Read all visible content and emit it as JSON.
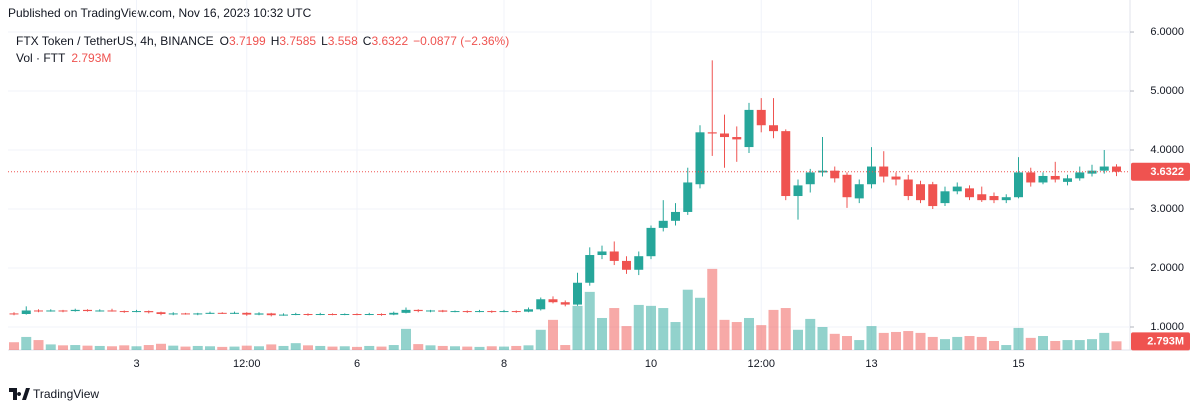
{
  "header": "Published on TradingView.com, Nov 16, 2023 10:32 UTC",
  "footer": "TradingView",
  "chart_data": {
    "type": "candlestick",
    "legend": {
      "symbol": "FTX Token / TetherUS, 4h, BINANCE",
      "open_prefix": "O",
      "high_prefix": "H",
      "low_prefix": "L",
      "close_prefix": "C",
      "change": "−0.0877 (−2.36%)"
    },
    "x": [
      null,
      null,
      null,
      null,
      null,
      null,
      null,
      null,
      null,
      null,
      "3",
      null,
      null,
      null,
      null,
      null,
      null,
      null,
      null,
      "12:00",
      null,
      null,
      null,
      null,
      null,
      null,
      null,
      null,
      "6",
      null,
      null,
      null,
      null,
      null,
      null,
      null,
      null,
      null,
      null,
      null,
      "8",
      null,
      null,
      null,
      null,
      null,
      null,
      null,
      null,
      null,
      null,
      null,
      "10",
      null,
      null,
      null,
      null,
      null,
      null,
      null,
      null,
      "12:00",
      null,
      null,
      null,
      null,
      null,
      null,
      null,
      null,
      "13",
      null,
      null,
      null,
      null,
      null,
      null,
      null,
      null,
      null,
      null,
      null,
      "15",
      null,
      null,
      null,
      null,
      null,
      null,
      null,
      null
    ],
    "open": [
      1.23,
      1.22,
      1.28,
      1.27,
      1.28,
      1.27,
      1.29,
      1.27,
      1.28,
      1.27,
      1.26,
      1.27,
      1.25,
      1.22,
      1.23,
      1.22,
      1.23,
      1.24,
      1.23,
      1.24,
      1.21,
      1.23,
      1.2,
      1.21,
      1.22,
      1.21,
      1.22,
      1.21,
      1.22,
      1.21,
      1.22,
      1.21,
      1.24,
      1.29,
      1.27,
      1.28,
      1.26,
      1.27,
      1.26,
      1.27,
      1.26,
      1.27,
      1.26,
      1.3,
      1.47,
      1.42,
      1.38,
      1.75,
      2.22,
      2.28,
      2.12,
      1.97,
      2.2,
      2.68,
      2.8,
      2.95,
      3.42,
      4.3,
      4.28,
      4.22,
      4.05,
      4.68,
      4.42,
      4.32,
      3.22,
      3.42,
      3.62,
      3.65,
      3.58,
      3.18,
      3.42,
      3.72,
      3.55,
      3.5,
      3.42,
      3.42,
      3.1,
      3.3,
      3.35,
      3.25,
      3.22,
      3.15,
      3.2,
      3.62,
      3.45,
      3.56,
      3.46,
      3.52,
      3.6,
      3.65,
      3.7199
    ],
    "high": [
      1.25,
      1.35,
      1.3,
      1.3,
      1.29,
      1.31,
      1.3,
      1.3,
      1.31,
      1.28,
      1.29,
      1.28,
      1.26,
      1.25,
      1.24,
      1.24,
      1.26,
      1.25,
      1.26,
      1.25,
      1.25,
      1.24,
      1.23,
      1.24,
      1.23,
      1.24,
      1.23,
      1.23,
      1.23,
      1.24,
      1.23,
      1.26,
      1.33,
      1.3,
      1.29,
      1.29,
      1.28,
      1.28,
      1.29,
      1.28,
      1.29,
      1.28,
      1.33,
      1.5,
      1.52,
      1.45,
      1.92,
      2.35,
      2.38,
      2.45,
      2.2,
      2.28,
      2.72,
      3.15,
      3.1,
      3.7,
      4.42,
      5.52,
      4.6,
      4.4,
      4.8,
      4.88,
      4.88,
      4.35,
      3.5,
      3.68,
      4.22,
      3.72,
      3.62,
      3.5,
      4.05,
      3.98,
      3.62,
      3.58,
      3.48,
      3.46,
      3.38,
      3.45,
      3.4,
      3.38,
      3.28,
      3.25,
      3.88,
      3.7,
      3.62,
      3.8,
      3.58,
      3.72,
      3.75,
      4.0,
      3.7585
    ],
    "low": [
      1.2,
      1.21,
      1.25,
      1.26,
      1.25,
      1.26,
      1.26,
      1.26,
      1.26,
      1.24,
      1.25,
      1.23,
      1.2,
      1.2,
      1.21,
      1.2,
      1.22,
      1.22,
      1.22,
      1.19,
      1.2,
      1.18,
      1.19,
      1.2,
      1.19,
      1.2,
      1.2,
      1.2,
      1.2,
      1.2,
      1.19,
      1.2,
      1.23,
      1.25,
      1.25,
      1.25,
      1.25,
      1.24,
      1.25,
      1.24,
      1.25,
      1.24,
      1.25,
      1.28,
      1.4,
      1.35,
      1.36,
      1.7,
      2.15,
      2.05,
      1.9,
      1.88,
      2.15,
      2.62,
      2.72,
      2.9,
      3.35,
      3.9,
      3.7,
      3.8,
      3.95,
      4.3,
      4.2,
      3.15,
      2.82,
      3.28,
      3.55,
      3.45,
      3.02,
      3.1,
      3.35,
      3.45,
      3.4,
      3.15,
      3.1,
      3.0,
      3.05,
      3.25,
      3.15,
      3.12,
      3.1,
      3.1,
      3.18,
      3.38,
      3.42,
      3.45,
      3.4,
      3.48,
      3.55,
      3.6,
      3.558
    ],
    "close": [
      1.22,
      1.28,
      1.27,
      1.28,
      1.27,
      1.29,
      1.27,
      1.28,
      1.27,
      1.26,
      1.27,
      1.25,
      1.22,
      1.23,
      1.22,
      1.23,
      1.24,
      1.23,
      1.24,
      1.21,
      1.23,
      1.2,
      1.21,
      1.22,
      1.21,
      1.22,
      1.21,
      1.22,
      1.21,
      1.22,
      1.21,
      1.24,
      1.29,
      1.27,
      1.28,
      1.26,
      1.27,
      1.26,
      1.27,
      1.26,
      1.27,
      1.26,
      1.3,
      1.47,
      1.42,
      1.38,
      1.75,
      2.22,
      2.28,
      2.12,
      1.97,
      2.2,
      2.68,
      2.8,
      2.95,
      3.45,
      4.3,
      4.28,
      4.22,
      4.18,
      4.68,
      4.42,
      4.32,
      3.22,
      3.4,
      3.62,
      3.65,
      3.52,
      3.2,
      3.42,
      3.72,
      3.55,
      3.5,
      3.22,
      3.15,
      3.05,
      3.3,
      3.38,
      3.2,
      3.15,
      3.15,
      3.2,
      3.62,
      3.45,
      3.56,
      3.5,
      3.52,
      3.62,
      3.65,
      3.72,
      3.6322
    ],
    "up_color": "#26a69a",
    "down_color": "#ef5350",
    "ylim": [
      0.61,
      6.17
    ],
    "yticks": [
      {
        "value": 1,
        "label": "1.0000"
      },
      {
        "value": 2,
        "label": "2.0000"
      },
      {
        "value": 3,
        "label": "3.0000"
      },
      {
        "value": 4,
        "label": "4.0000"
      },
      {
        "value": 5,
        "label": "5.0000"
      },
      {
        "value": 6,
        "label": "6.0000"
      }
    ],
    "grid": true,
    "volume": {
      "name": "Vol · FTT",
      "values": [
        2.5,
        4.2,
        3.2,
        1.8,
        1.5,
        1.6,
        1.4,
        1.3,
        1.2,
        1.5,
        1.2,
        1.6,
        2.0,
        1.4,
        1.1,
        1.3,
        1.2,
        1.0,
        1.1,
        1.4,
        1.2,
        1.8,
        1.3,
        2.2,
        1.5,
        1.3,
        1.1,
        1.2,
        1.0,
        1.3,
        1.1,
        1.6,
        6.8,
        1.9,
        1.5,
        1.3,
        1.2,
        1.1,
        1.0,
        1.2,
        1.1,
        1.3,
        1.5,
        6.5,
        9.7,
        1.6,
        14.2,
        18.7,
        10.3,
        13.5,
        7.7,
        14.5,
        14.2,
        13.5,
        9,
        19.4,
        16.8,
        26.1,
        9.7,
        9,
        10.3,
        8,
        12.9,
        13.5,
        6.5,
        10,
        7.4,
        5.2,
        4.5,
        3.2,
        7.7,
        5.5,
        5.8,
        6.1,
        5.5,
        4.2,
        3.5,
        4.2,
        4.5,
        4.2,
        2.9,
        1.6,
        7.1,
        3.9,
        4.5,
        2.9,
        3.2,
        3.2,
        3.5,
        5.5,
        2.793
      ],
      "last_label": "2.793M",
      "ylim": [
        0,
        37
      ]
    }
  }
}
